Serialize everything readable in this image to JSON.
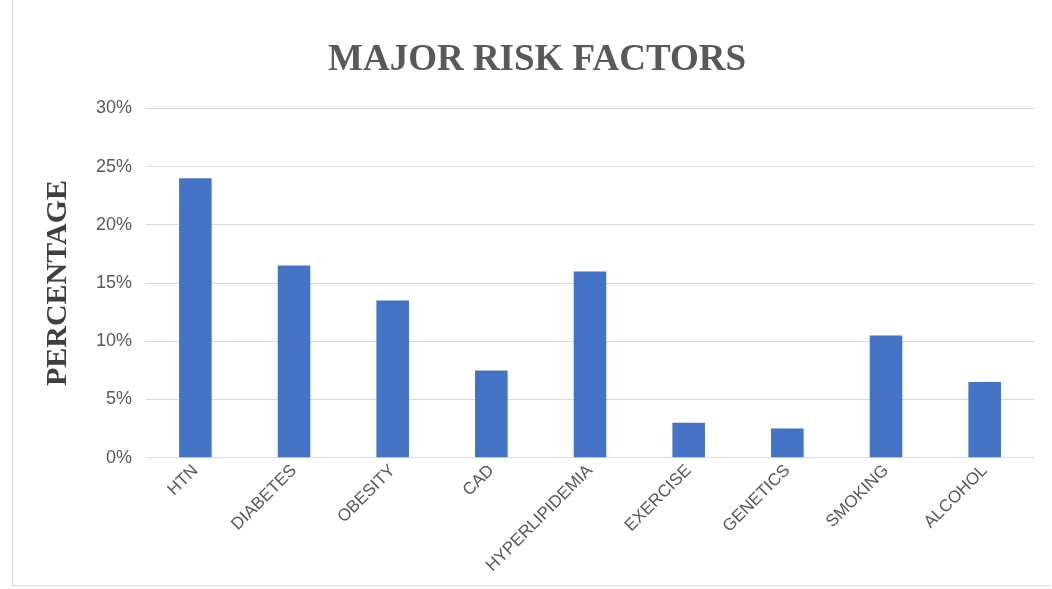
{
  "chart_data": {
    "type": "bar",
    "title": "MAJOR RISK FACTORS",
    "ylabel": "PERCENTAGE",
    "categories": [
      "HTN",
      "DIABETES",
      "OBESITY",
      "CAD",
      "HYPERLIPIDEMIA",
      "EXERCISE",
      "GENETICS",
      "SMOKING",
      "ALCOHOL"
    ],
    "values": [
      24,
      16.5,
      13.5,
      7.5,
      16,
      3,
      2.5,
      10.5,
      6.5
    ],
    "color": "#4472c4",
    "ylim": [
      0,
      30
    ],
    "yticks": [
      {
        "value": 0,
        "label": "0%"
      },
      {
        "value": 5,
        "label": "5%"
      },
      {
        "value": 10,
        "label": "10%"
      },
      {
        "value": 15,
        "label": "15%"
      },
      {
        "value": 20,
        "label": "20%"
      },
      {
        "value": 25,
        "label": "25%"
      },
      {
        "value": 30,
        "label": "30%"
      }
    ],
    "grid": "y",
    "legend": false
  }
}
